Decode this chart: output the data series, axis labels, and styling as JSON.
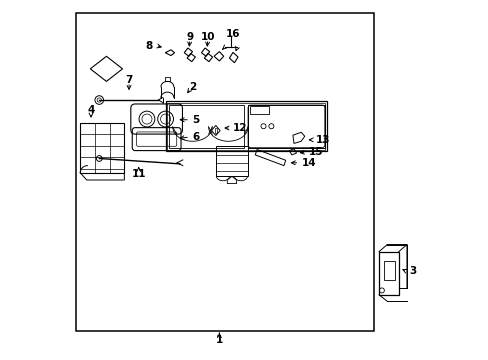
{
  "bg_color": "#ffffff",
  "lc": "#000000",
  "tc": "#000000",
  "figsize": [
    4.89,
    3.6
  ],
  "dpi": 100,
  "lw": 0.8
}
